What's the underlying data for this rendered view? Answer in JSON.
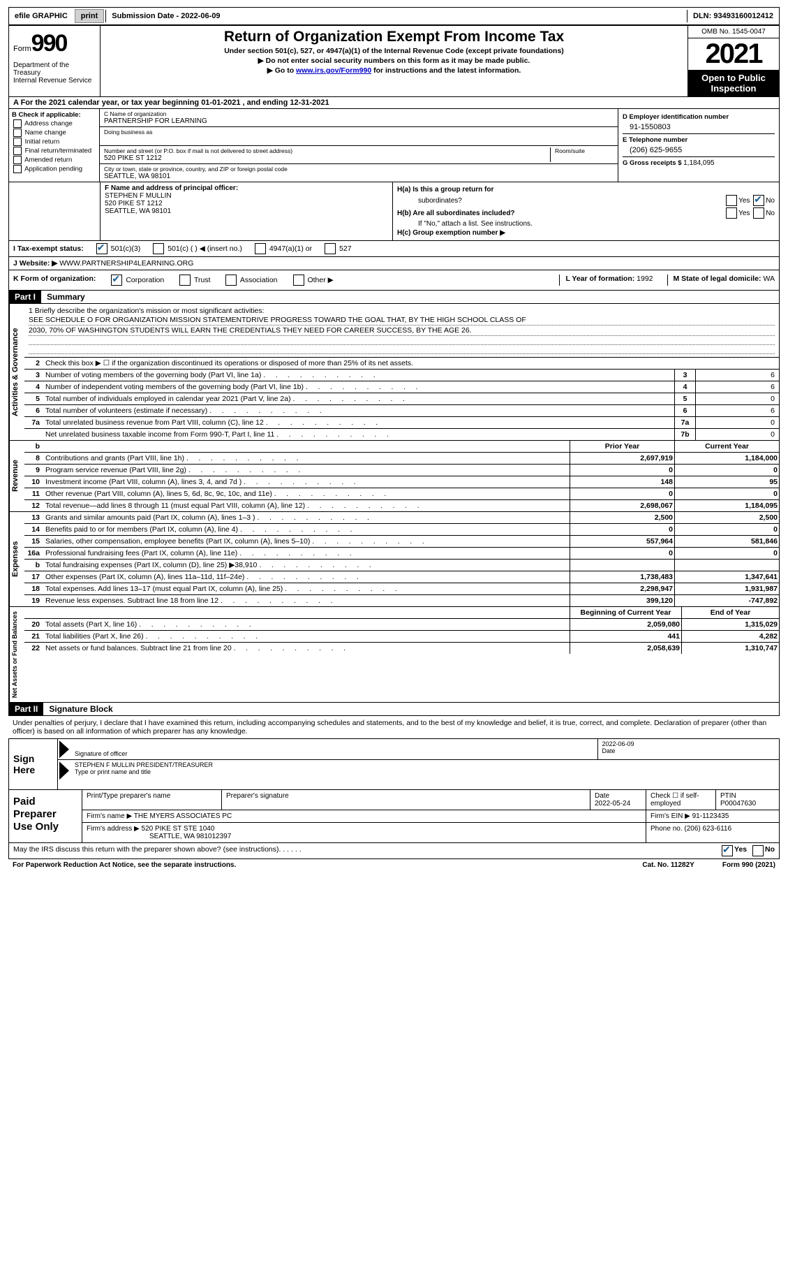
{
  "topbar": {
    "efile": "efile GRAPHIC",
    "print": "print",
    "submission_label": "Submission Date - ",
    "submission_date": "2022-06-09",
    "dln_label": "DLN: ",
    "dln": "93493160012412"
  },
  "header": {
    "form_word": "Form",
    "form_no": "990",
    "title": "Return of Organization Exempt From Income Tax",
    "sub": "Under section 501(c), 527, or 4947(a)(1) of the Internal Revenue Code (except private foundations)",
    "arrow1": "▶ Do not enter social security numbers on this form as it may be made public.",
    "arrow2_pre": "▶ Go to ",
    "arrow2_link": "www.irs.gov/Form990",
    "arrow2_post": " for instructions and the latest information.",
    "dept": "Department of the Treasury\nInternal Revenue Service",
    "omb": "OMB No. 1545-0047",
    "year": "2021",
    "open": "Open to Public Inspection"
  },
  "row_a": "A  For the 2021 calendar year, or tax year beginning 01-01-2021    , and ending 12-31-2021",
  "col_b": {
    "hdr": "B Check if applicable:",
    "opts": [
      "Address change",
      "Name change",
      "Initial return",
      "Final return/terminated",
      "Amended return",
      "Application pending"
    ]
  },
  "col_c": {
    "name_lab": "C Name of organization",
    "name": "PARTNERSHIP FOR LEARNING",
    "dba_lab": "Doing business as",
    "dba": "",
    "addr_lab": "Number and street (or P.O. box if mail is not delivered to street address)",
    "addr": "520 PIKE ST 1212",
    "room_lab": "Room/suite",
    "room": "",
    "city_lab": "City or town, state or province, country, and ZIP or foreign postal code",
    "city": "SEATTLE, WA  98101"
  },
  "col_d": {
    "ein_lab": "D Employer identification number",
    "ein": "91-1550803",
    "tel_lab": "E Telephone number",
    "tel": "(206) 625-9655",
    "gross_lab": "G Gross receipts $ ",
    "gross": "1,184,095"
  },
  "col_f": {
    "lab": "F  Name and address of principal officer:",
    "name": "STEPHEN F MULLIN",
    "addr1": "520 PIKE ST 1212",
    "addr2": "SEATTLE, WA  98101"
  },
  "col_h": {
    "a_lab": "H(a)  Is this a group return for",
    "a_lab2": "subordinates?",
    "b_lab": "H(b)  Are all subordinates included?",
    "b_note": "If \"No,\" attach a list. See instructions.",
    "c_lab": "H(c)  Group exemption number ▶",
    "yes": "Yes",
    "no": "No"
  },
  "row_i": {
    "lab": "I     Tax-exempt status:",
    "opt1": "501(c)(3)",
    "opt2": "501(c) (   ) ◀ (insert no.)",
    "opt3": "4947(a)(1) or",
    "opt4": "527"
  },
  "row_j": {
    "lab": "J    Website: ▶  ",
    "val": "WWW.PARTNERSHIP4LEARNING.ORG"
  },
  "row_k": {
    "lab": "K Form of organization:",
    "corp": "Corporation",
    "trust": "Trust",
    "assoc": "Association",
    "other": "Other ▶",
    "l_lab": "L Year of formation: ",
    "l_val": "1992",
    "m_lab": "M State of legal domicile: ",
    "m_val": "WA"
  },
  "parts": {
    "p1": "Part I",
    "p1_t": "Summary",
    "p2": "Part II",
    "p2_t": "Signature Block"
  },
  "mission": {
    "lab": "1   Briefly describe the organization's mission or most significant activities:",
    "line1": "SEE SCHEDULE O FOR ORGANIZATION MISSION STATEMENTDRIVE PROGRESS TOWARD THE GOAL THAT, BY THE HIGH SCHOOL CLASS OF",
    "line2": "2030, 70% OF WASHINGTON STUDENTS WILL EARN THE CREDENTIALS THEY NEED FOR CAREER SUCCESS, BY THE AGE 26."
  },
  "line2": "Check this box ▶ ☐ if the organization discontinued its operations or disposed of more than 25% of its net assets.",
  "sidelabs": {
    "gov": "Activities & Governance",
    "rev": "Revenue",
    "exp": "Expenses",
    "net": "Net Assets or Fund Balances"
  },
  "gov_rows": [
    {
      "n": "3",
      "t": "Number of voting members of the governing body (Part VI, line 1a)",
      "bn": "3",
      "v": "6"
    },
    {
      "n": "4",
      "t": "Number of independent voting members of the governing body (Part VI, line 1b)",
      "bn": "4",
      "v": "6"
    },
    {
      "n": "5",
      "t": "Total number of individuals employed in calendar year 2021 (Part V, line 2a)",
      "bn": "5",
      "v": "0"
    },
    {
      "n": "6",
      "t": "Total number of volunteers (estimate if necessary)",
      "bn": "6",
      "v": "6"
    },
    {
      "n": "7a",
      "t": "Total unrelated business revenue from Part VIII, column (C), line 12",
      "bn": "7a",
      "v": "0"
    },
    {
      "n": "",
      "t": "Net unrelated business taxable income from Form 990-T, Part I, line 11",
      "bn": "7b",
      "v": "0"
    }
  ],
  "col_hdrs": {
    "prior": "Prior Year",
    "current": "Current Year",
    "beg": "Beginning of Current Year",
    "end": "End of Year"
  },
  "rev_rows": [
    {
      "n": "8",
      "t": "Contributions and grants (Part VIII, line 1h)",
      "p": "2,697,919",
      "c": "1,184,000"
    },
    {
      "n": "9",
      "t": "Program service revenue (Part VIII, line 2g)",
      "p": "0",
      "c": "0"
    },
    {
      "n": "10",
      "t": "Investment income (Part VIII, column (A), lines 3, 4, and 7d )",
      "p": "148",
      "c": "95"
    },
    {
      "n": "11",
      "t": "Other revenue (Part VIII, column (A), lines 5, 6d, 8c, 9c, 10c, and 11e)",
      "p": "0",
      "c": "0"
    },
    {
      "n": "12",
      "t": "Total revenue—add lines 8 through 11 (must equal Part VIII, column (A), line 12)",
      "p": "2,698,067",
      "c": "1,184,095"
    }
  ],
  "exp_rows": [
    {
      "n": "13",
      "t": "Grants and similar amounts paid (Part IX, column (A), lines 1–3 )",
      "p": "2,500",
      "c": "2,500"
    },
    {
      "n": "14",
      "t": "Benefits paid to or for members (Part IX, column (A), line 4)",
      "p": "0",
      "c": "0"
    },
    {
      "n": "15",
      "t": "Salaries, other compensation, employee benefits (Part IX, column (A), lines 5–10)",
      "p": "557,964",
      "c": "581,846"
    },
    {
      "n": "16a",
      "t": "Professional fundraising fees (Part IX, column (A), line 11e)",
      "p": "0",
      "c": "0"
    },
    {
      "n": "b",
      "t": "Total fundraising expenses (Part IX, column (D), line 25) ▶38,910",
      "p": "shade",
      "c": "shade"
    },
    {
      "n": "17",
      "t": "Other expenses (Part IX, column (A), lines 11a–11d, 11f–24e)",
      "p": "1,738,483",
      "c": "1,347,641"
    },
    {
      "n": "18",
      "t": "Total expenses. Add lines 13–17 (must equal Part IX, column (A), line 25)",
      "p": "2,298,947",
      "c": "1,931,987"
    },
    {
      "n": "19",
      "t": "Revenue less expenses. Subtract line 18 from line 12",
      "p": "399,120",
      "c": "-747,892"
    }
  ],
  "net_rows": [
    {
      "n": "20",
      "t": "Total assets (Part X, line 16)",
      "p": "2,059,080",
      "c": "1,315,029"
    },
    {
      "n": "21",
      "t": "Total liabilities (Part X, line 26)",
      "p": "441",
      "c": "4,282"
    },
    {
      "n": "22",
      "t": "Net assets or fund balances. Subtract line 21 from line 20",
      "p": "2,058,639",
      "c": "1,310,747"
    }
  ],
  "sig": {
    "perjury": "Under penalties of perjury, I declare that I have examined this return, including accompanying schedules and statements, and to the best of my knowledge and belief, it is true, correct, and complete. Declaration of preparer (other than officer) is based on all information of which preparer has any knowledge.",
    "sign_here": "Sign Here",
    "sig_of_officer": "Signature of officer",
    "date_lab": "Date",
    "date": "2022-06-09",
    "name_title_lab": "Type or print name and title",
    "name_title": "STEPHEN F MULLIN  PRESIDENT/TREASURER"
  },
  "paid": {
    "title": "Paid Preparer Use Only",
    "prep_name_lab": "Print/Type preparer's name",
    "prep_name": "",
    "prep_sig_lab": "Preparer's signature",
    "prep_date_lab": "Date",
    "prep_date": "2022-05-24",
    "self_emp": "Check ☐ if self-employed",
    "ptin_lab": "PTIN",
    "ptin": "P00047630",
    "firm_name_lab": "Firm's name      ▶ ",
    "firm_name": "THE MYERS ASSOCIATES PC",
    "firm_ein_lab": "Firm's EIN ▶ ",
    "firm_ein": "91-1123435",
    "firm_addr_lab": "Firm's address ▶ ",
    "firm_addr1": "520 PIKE ST STE 1040",
    "firm_addr2": "SEATTLE, WA  981012397",
    "phone_lab": "Phone no. ",
    "phone": "(206) 623-6116"
  },
  "footer": {
    "discuss": "May the IRS discuss this return with the preparer shown above? (see instructions)",
    "yes": "Yes",
    "no": "No",
    "pra": "For Paperwork Reduction Act Notice, see the separate instructions.",
    "cat": "Cat. No. 11282Y",
    "form": "Form 990 (2021)"
  },
  "colors": {
    "check": "#1a5d8f"
  }
}
